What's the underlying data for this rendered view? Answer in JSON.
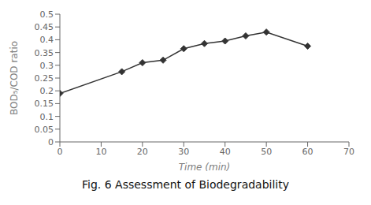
{
  "chart_data": {
    "type": "line",
    "title": "Fig. 6 Assessment of Biodegradability",
    "x": [
      0,
      15,
      20,
      25,
      30,
      35,
      40,
      45,
      50,
      60
    ],
    "values": [
      0.19,
      0.275,
      0.31,
      0.32,
      0.365,
      0.385,
      0.395,
      0.415,
      0.43,
      0.375
    ],
    "xlabel": "Time (min)",
    "ylabel": "BOD₅/COD ratio",
    "xlim": [
      0,
      70
    ],
    "ylim": [
      0,
      0.5
    ],
    "xticks": [
      0,
      10,
      20,
      30,
      40,
      50,
      60,
      70
    ],
    "yticks": [
      0,
      0.05,
      0.1,
      0.15,
      0.2,
      0.25,
      0.3,
      0.35,
      0.4,
      0.45,
      0.5
    ],
    "color": "#333333",
    "marker": "diamond"
  }
}
